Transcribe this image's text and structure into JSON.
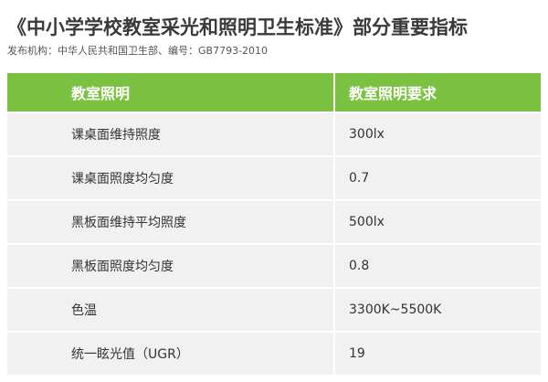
{
  "header": {
    "title": "《中小学学校教室采光和照明卫生标准》部分重要指标",
    "subtitle": "发布机构：中华人民共和国卫生部、编号：GB7793-2010"
  },
  "table": {
    "columns": [
      "教室照明",
      "教室照明要求"
    ],
    "rows": [
      [
        "课桌面维持照度",
        "300lx"
      ],
      [
        "课桌面照度均匀度",
        "0.7"
      ],
      [
        "黑板面维持平均照度",
        "500lx"
      ],
      [
        "黑板面照度均匀度",
        "0.8"
      ],
      [
        "色温",
        "3300K~5500K"
      ],
      [
        "统一眩光值（UGR）",
        "19"
      ]
    ]
  }
}
